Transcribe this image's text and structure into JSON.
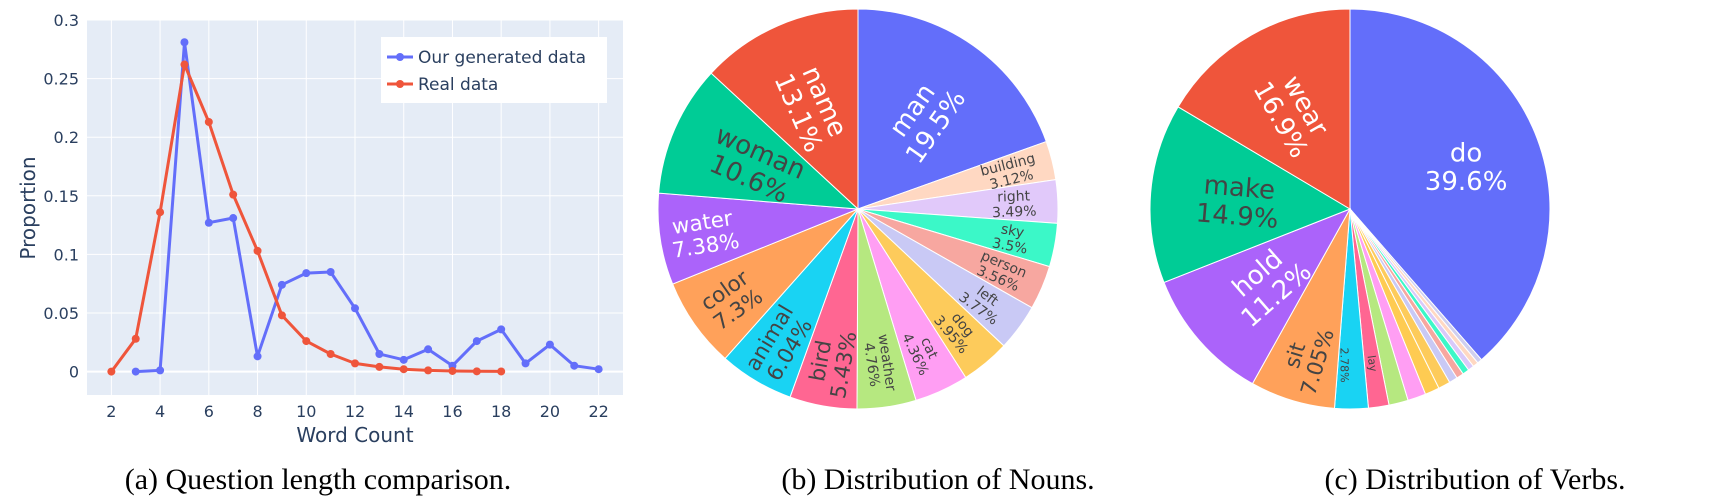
{
  "chart_data": [
    {
      "type": "line",
      "caption": "(a) Question length comparison.",
      "xlabel": "Word Count",
      "ylabel": "Proportion",
      "xlim": [
        1,
        23
      ],
      "ylim": [
        -0.02,
        0.3
      ],
      "xticks": [
        2,
        4,
        6,
        8,
        10,
        12,
        14,
        16,
        18,
        20,
        22
      ],
      "yticks": [
        0,
        0.05,
        0.1,
        0.15,
        0.2,
        0.25,
        0.3
      ],
      "ytick_labels": [
        "0",
        "0.05",
        "0.1",
        "0.15",
        "0.2",
        "0.25",
        "0.3"
      ],
      "grid": true,
      "legend_position": "top-right",
      "series": [
        {
          "name": "Our generated data",
          "color": "#636efa",
          "x": [
            3,
            4,
            5,
            6,
            7,
            8,
            9,
            10,
            11,
            12,
            13,
            14,
            15,
            16,
            17,
            18,
            19,
            20,
            21,
            22
          ],
          "y": [
            0.0,
            0.001,
            0.281,
            0.127,
            0.131,
            0.013,
            0.074,
            0.084,
            0.085,
            0.054,
            0.015,
            0.01,
            0.019,
            0.005,
            0.026,
            0.036,
            0.007,
            0.023,
            0.005,
            0.002
          ]
        },
        {
          "name": "Real data",
          "color": "#ef553b",
          "x": [
            2,
            3,
            4,
            5,
            6,
            7,
            8,
            9,
            10,
            11,
            12,
            13,
            14,
            15,
            16,
            17,
            18
          ],
          "y": [
            0.0,
            0.028,
            0.136,
            0.262,
            0.213,
            0.151,
            0.103,
            0.048,
            0.026,
            0.015,
            0.007,
            0.004,
            0.002,
            0.001,
            0.0005,
            0.0002,
            0.0001
          ]
        }
      ]
    },
    {
      "type": "pie",
      "caption": "(b) Distribution of Nouns.",
      "slices": [
        {
          "label": "man",
          "pct": "19.5%",
          "value": 19.5,
          "color": "#636efa"
        },
        {
          "label": "building",
          "pct": "3.12%",
          "value": 3.12,
          "color": "#ffd8c2"
        },
        {
          "label": "right",
          "pct": "3.49%",
          "value": 3.49,
          "color": "#e1c9fa"
        },
        {
          "label": "sky",
          "pct": "3.5%",
          "value": 3.5,
          "color": "#3bf8c8"
        },
        {
          "label": "person",
          "pct": "3.56%",
          "value": 3.56,
          "color": "#f7a7a0"
        },
        {
          "label": "left",
          "pct": "3.77%",
          "value": 3.77,
          "color": "#c9c9f5"
        },
        {
          "label": "dog",
          "pct": "3.95%",
          "value": 3.95,
          "color": "#fdcb5b"
        },
        {
          "label": "cat",
          "pct": "4.36%",
          "value": 4.36,
          "color": "#ff9ef3"
        },
        {
          "label": "weather",
          "pct": "4.76%",
          "value": 4.76,
          "color": "#b6e880"
        },
        {
          "label": "bird",
          "pct": "5.43%",
          "value": 5.43,
          "color": "#ff6692"
        },
        {
          "label": "animal",
          "pct": "6.04%",
          "value": 6.04,
          "color": "#19d3f3"
        },
        {
          "label": "color",
          "pct": "7.3%",
          "value": 7.3,
          "color": "#ffa15a"
        },
        {
          "label": "water",
          "pct": "7.38%",
          "value": 7.38,
          "color": "#ab63fa"
        },
        {
          "label": "woman",
          "pct": "10.6%",
          "value": 10.6,
          "color": "#00cc96"
        },
        {
          "label": "name",
          "pct": "13.1%",
          "value": 13.1,
          "color": "#ef553b"
        }
      ]
    },
    {
      "type": "pie",
      "caption": "(c) Distribution of Verbs.",
      "slices": [
        {
          "label": "do",
          "pct": "39.6%",
          "value": 39.6,
          "color": "#636efa"
        },
        {
          "label": "",
          "pct": "",
          "value": 0.4,
          "color": "#cfcfef"
        },
        {
          "label": "",
          "pct": "",
          "value": 0.45,
          "color": "#ffd8c2"
        },
        {
          "label": "",
          "pct": "",
          "value": 0.5,
          "color": "#d9c9fa"
        },
        {
          "label": "",
          "pct": "",
          "value": 0.55,
          "color": "#3bf8c8"
        },
        {
          "label": "",
          "pct": "",
          "value": 0.6,
          "color": "#f7a7a0"
        },
        {
          "label": "",
          "pct": "",
          "value": 0.7,
          "color": "#c9c9f5"
        },
        {
          "label": "",
          "pct": "",
          "value": 1.0,
          "color": "#fdcb5b"
        },
        {
          "label": "",
          "pct": "",
          "value": 1.2,
          "color": "#fecb52"
        },
        {
          "label": "",
          "pct": "",
          "value": 1.51,
          "color": "#ff9ef3"
        },
        {
          "label": "",
          "pct": "",
          "value": 1.6,
          "color": "#b6e880"
        },
        {
          "label": "lay",
          "pct": "",
          "value": 1.7,
          "color": "#ff6692"
        },
        {
          "label": "",
          "pct": "2.78%",
          "value": 2.78,
          "color": "#19d3f3"
        },
        {
          "label": "sit",
          "pct": "7.05%",
          "value": 7.05,
          "color": "#ffa15a"
        },
        {
          "label": "hold",
          "pct": "11.2%",
          "value": 11.2,
          "color": "#ab63fa"
        },
        {
          "label": "make",
          "pct": "14.9%",
          "value": 14.9,
          "color": "#00cc96"
        },
        {
          "label": "wear",
          "pct": "16.9%",
          "value": 16.9,
          "color": "#ef553b"
        }
      ]
    }
  ]
}
